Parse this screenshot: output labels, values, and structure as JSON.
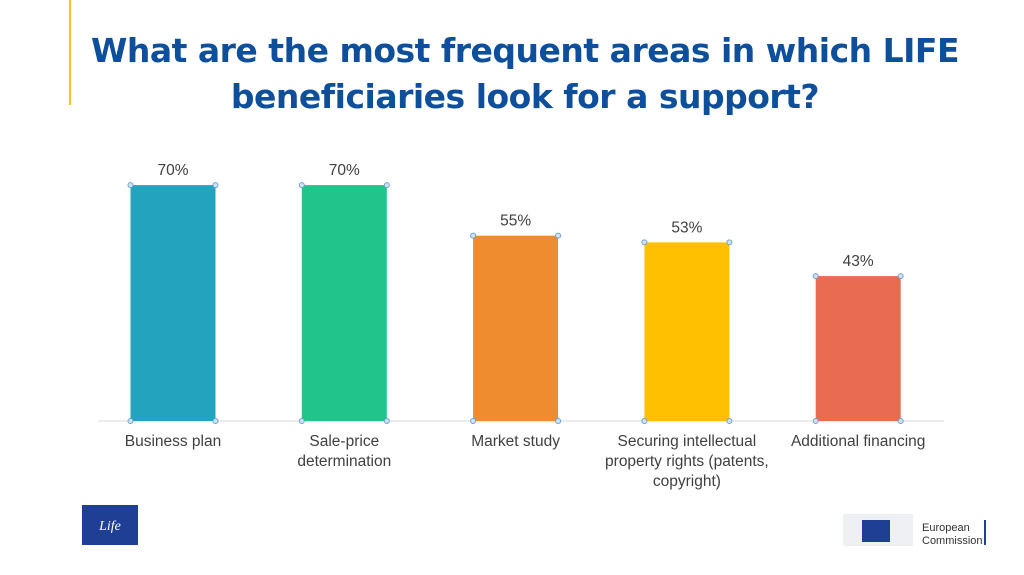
{
  "chart_data": {
    "type": "bar",
    "title": "What are the most frequent areas in which LIFE beneficiaries look for a support?",
    "categories": [
      "Business plan",
      "Sale-price determination",
      "Market study",
      "Securing intellectual property rights (patents, copyright)",
      "Additional financing"
    ],
    "values": [
      70,
      70,
      55,
      53,
      43
    ],
    "value_labels": [
      "70%",
      "70%",
      "55%",
      "53%",
      "43%"
    ],
    "colors": [
      "#23a3bd",
      "#21c48a",
      "#ef8c30",
      "#fec000",
      "#e86b52"
    ]
  },
  "footer": {
    "left_logo": "Life",
    "right_logo": "European Commission"
  }
}
